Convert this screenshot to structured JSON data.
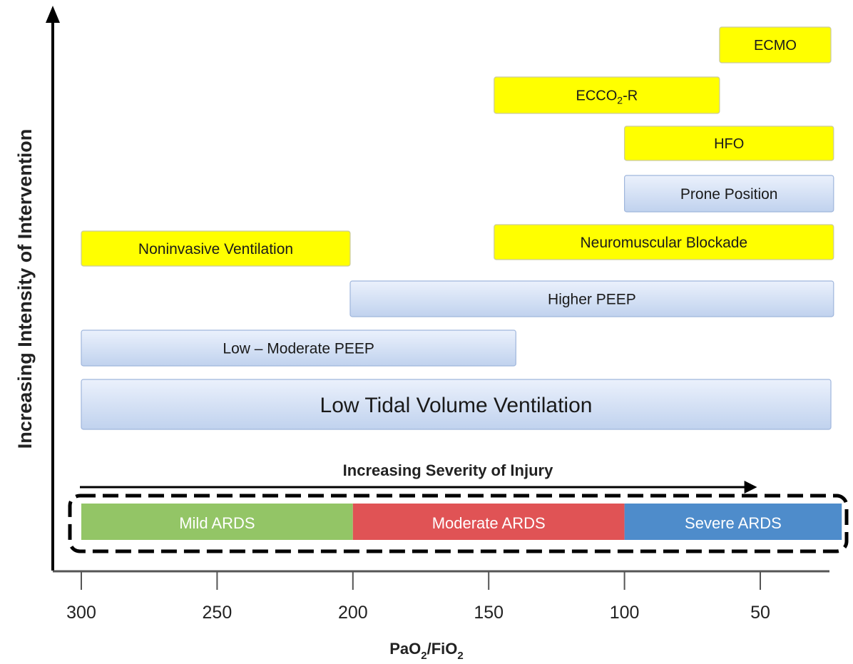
{
  "y_axis_label": "Increasing Intensity of Intervention",
  "x_axis": {
    "label_main": "PaO",
    "label_sub1": "2",
    "label_mid": "/FiO",
    "label_sub2": "2",
    "ticks": [
      "300",
      "250",
      "200",
      "150",
      "100",
      "50"
    ],
    "tick_values": [
      300,
      250,
      200,
      150,
      100,
      50
    ]
  },
  "severity_arrow_label": "Increasing Severity of Injury",
  "colors": {
    "yellow": "#ffff00",
    "blue_light": "#dfe9fa",
    "blue_mid": "#c3d4ef",
    "mild": "#93c566",
    "moderate": "#e05355",
    "severe": "#4e8ccb"
  },
  "severity_bands": [
    {
      "label": "Mild ARDS",
      "from": 300,
      "to": 200,
      "color": "#93c566"
    },
    {
      "label": "Moderate ARDS",
      "from": 200,
      "to": 100,
      "color": "#e05355"
    },
    {
      "label": "Severe ARDS",
      "from": 100,
      "to": 20,
      "color": "#4e8ccb"
    }
  ],
  "interventions": [
    {
      "label": "ECMO",
      "style": "yellow",
      "from": 65,
      "to": 24
    },
    {
      "label_pre": "ECCO",
      "label_sub": "2",
      "label_post": "-R",
      "style": "yellow",
      "from": 148,
      "to": 65
    },
    {
      "label": "HFO",
      "style": "yellow",
      "from": 100,
      "to": 23
    },
    {
      "label": "Prone Position",
      "style": "blue",
      "from": 100,
      "to": 23
    },
    {
      "label": "Neuromuscular Blockade",
      "style": "yellow",
      "from": 148,
      "to": 23
    },
    {
      "label": "Noninvasive Ventilation",
      "style": "yellow",
      "from": 300,
      "to": 201
    },
    {
      "label": "Higher PEEP",
      "style": "blue",
      "from": 201,
      "to": 23
    },
    {
      "label": "Low – Moderate PEEP",
      "style": "blue",
      "from": 300,
      "to": 140
    },
    {
      "label": "Low Tidal Volume Ventilation",
      "style": "blue",
      "from": 300,
      "to": 24
    }
  ]
}
